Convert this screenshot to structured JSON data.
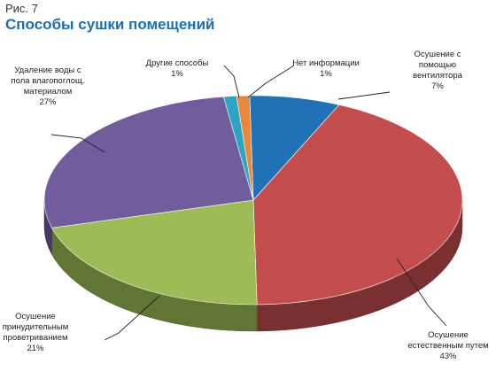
{
  "figure_label": "Рис. 7",
  "chart_data": {
    "type": "pie",
    "title": "Способы сушки помещений",
    "three_d": true,
    "legend": "none",
    "slices": [
      {
        "lines": [
          "Осушение с",
          "помощью",
          "вентилятора"
        ],
        "pct_label": "7%",
        "value": 7,
        "color": "#1f72b6"
      },
      {
        "lines": [
          "Осушение",
          "естественным путем"
        ],
        "pct_label": "43%",
        "value": 43,
        "color": "#c44e4e"
      },
      {
        "lines": [
          "Осушение",
          "принудительным",
          "проветриванием"
        ],
        "pct_label": "21%",
        "value": 21,
        "color": "#9dbc55"
      },
      {
        "lines": [
          "Удаление воды с",
          "пола влагопоглощ.",
          "материалом"
        ],
        "pct_label": "27%",
        "value": 27,
        "color": "#715c9e"
      },
      {
        "lines": [
          "Другие способы"
        ],
        "pct_label": "1%",
        "value": 1,
        "color": "#2aa6c4"
      },
      {
        "lines": [
          "Нет информации"
        ],
        "pct_label": "1%",
        "value": 1,
        "color": "#e9873b"
      }
    ]
  }
}
